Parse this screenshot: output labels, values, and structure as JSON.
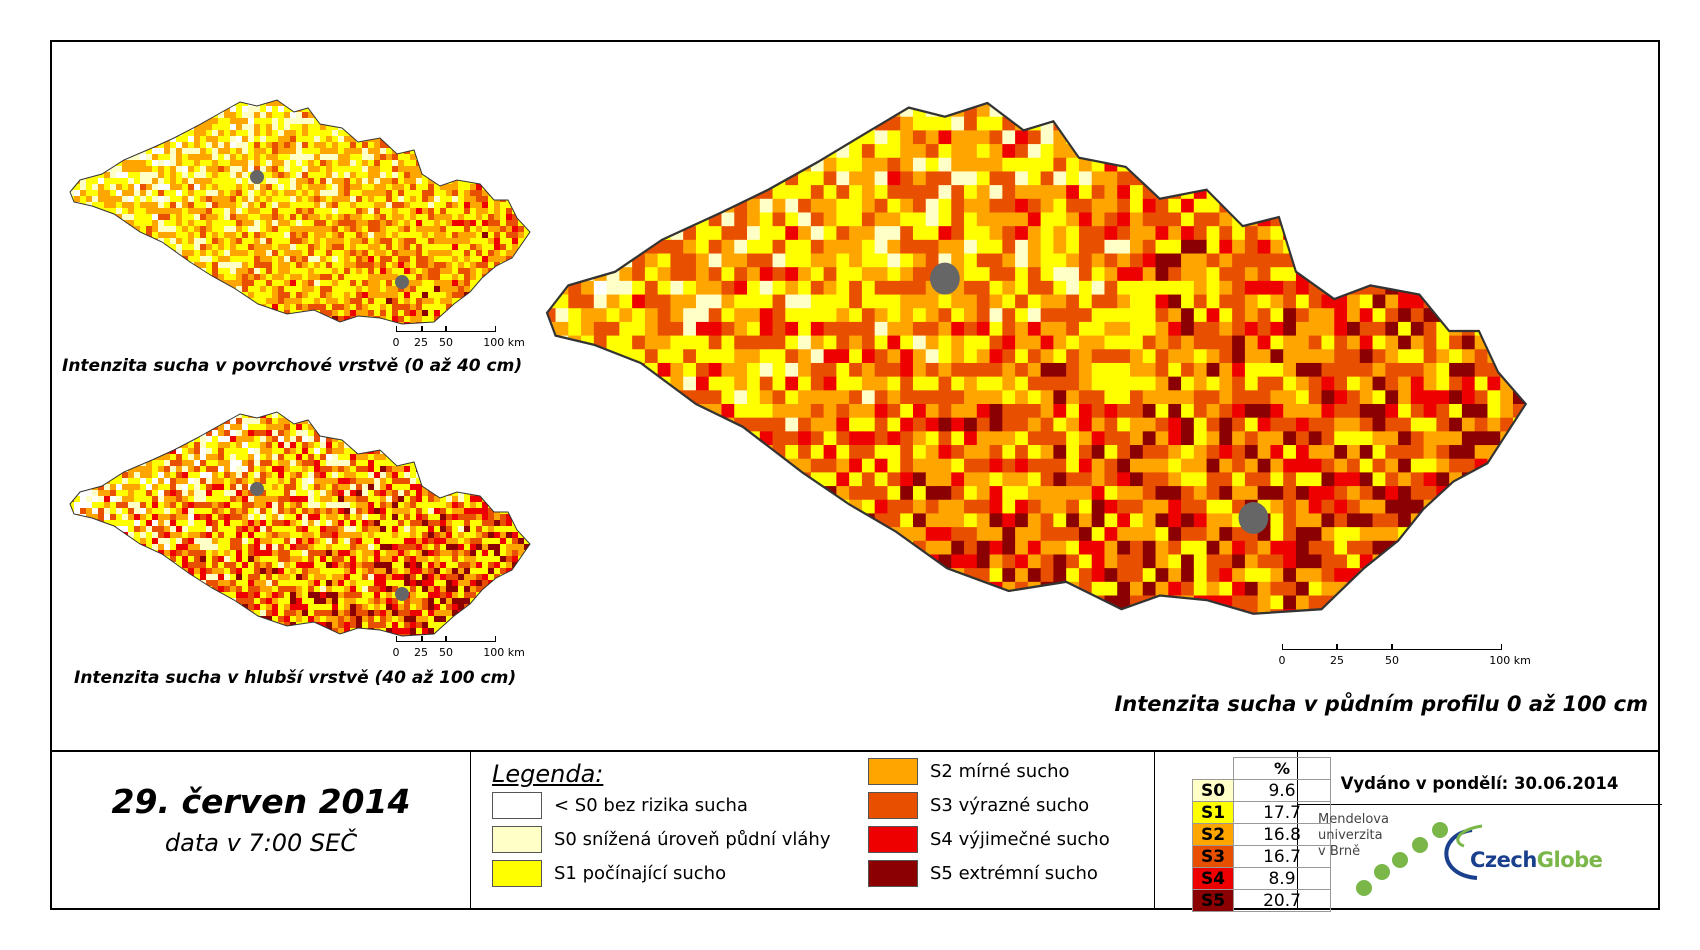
{
  "maps": [
    {
      "caption": "Intenzita sucha v povrchové vrstvě (0 až 40 cm)",
      "scale_labels": [
        "0",
        "25",
        "50",
        "100 km"
      ]
    },
    {
      "caption": "Intenzita sucha v hlubší vrstvě (40 až 100 cm)",
      "scale_labels": [
        "0",
        "25",
        "50",
        "100 km"
      ]
    },
    {
      "caption": "Intenzita sucha v půdním profilu 0 až 100 cm",
      "scale_labels": [
        "0",
        "25",
        "50",
        "100 km"
      ]
    }
  ],
  "date": {
    "main": "29. červen 2014",
    "sub": "data v 7:00 SEČ"
  },
  "legend": {
    "title": "Legenda:",
    "items": [
      {
        "label": "< S0 bez rizika sucha",
        "color": "#ffffff"
      },
      {
        "label": "S0 snížená úroveň půdní vláhy",
        "color": "#ffffc8"
      },
      {
        "label": "S1 počínající sucho",
        "color": "#ffff00"
      },
      {
        "label": "S2 mírné sucho",
        "color": "#ffa500"
      },
      {
        "label": "S3 výrazné sucho",
        "color": "#e85000"
      },
      {
        "label": "S4 výjimečné sucho",
        "color": "#ee0000"
      },
      {
        "label": "S5 extrémní sucho",
        "color": "#8b0000"
      }
    ]
  },
  "percent_table": {
    "header": "%",
    "rows": [
      {
        "code": "S0",
        "value": "9.6",
        "color": "#ffffc8"
      },
      {
        "code": "S1",
        "value": "17.7",
        "color": "#ffff00"
      },
      {
        "code": "S2",
        "value": "16.8",
        "color": "#ffa500"
      },
      {
        "code": "S3",
        "value": "16.7",
        "color": "#e85000"
      },
      {
        "code": "S4",
        "value": "8.9",
        "color": "#ee0000"
      },
      {
        "code": "S5",
        "value": "20.7",
        "color": "#8b0000"
      }
    ]
  },
  "issued": "Vydáno v pondělí: 30.06.2014",
  "logos": {
    "mendel": [
      "Mendelova",
      "univerzita",
      "v Brně"
    ],
    "czechglobe_a": "Czech",
    "czechglobe_b": "Globe"
  }
}
